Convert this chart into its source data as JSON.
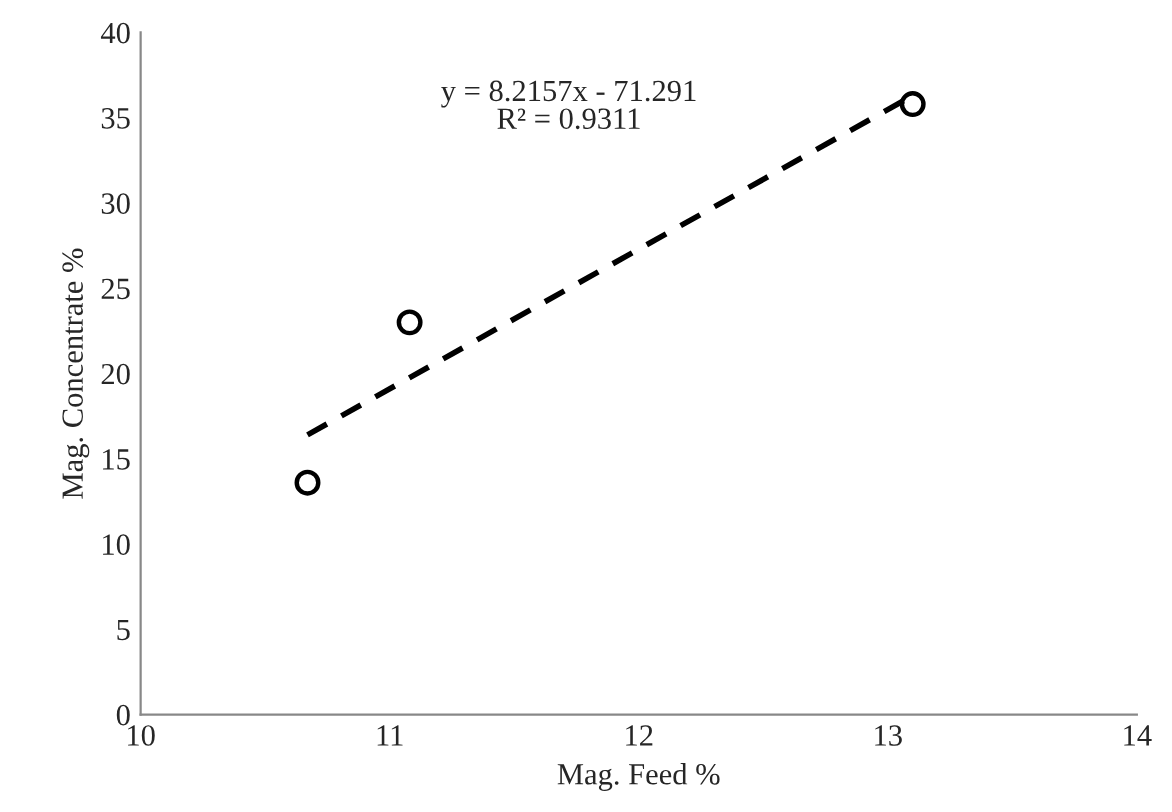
{
  "chart_data": {
    "type": "scatter",
    "xlabel": "Mag. Feed %",
    "ylabel": "Mag. Concentrate %",
    "xlim": [
      10,
      14
    ],
    "xticks": [
      10,
      11,
      12,
      13,
      14
    ],
    "ylim": [
      0,
      40
    ],
    "yticks": [
      0,
      5,
      10,
      15,
      20,
      25,
      30,
      35,
      40
    ],
    "grid": false,
    "marker": "circle",
    "series": [
      {
        "color": "#000000",
        "x": [
          10.67,
          11.08,
          13.1
        ],
        "values": [
          13.6,
          23.0,
          35.8
        ]
      },
      {
        "type": "line",
        "color": "#000000",
        "line_style": "dashed",
        "marker": "none",
        "x": [
          10.67,
          13.1
        ],
        "values": [
          16.4,
          36.3
        ]
      }
    ],
    "annotations": [
      "y = 8.2157x - 71.291\nR² = 0.9311"
    ]
  }
}
